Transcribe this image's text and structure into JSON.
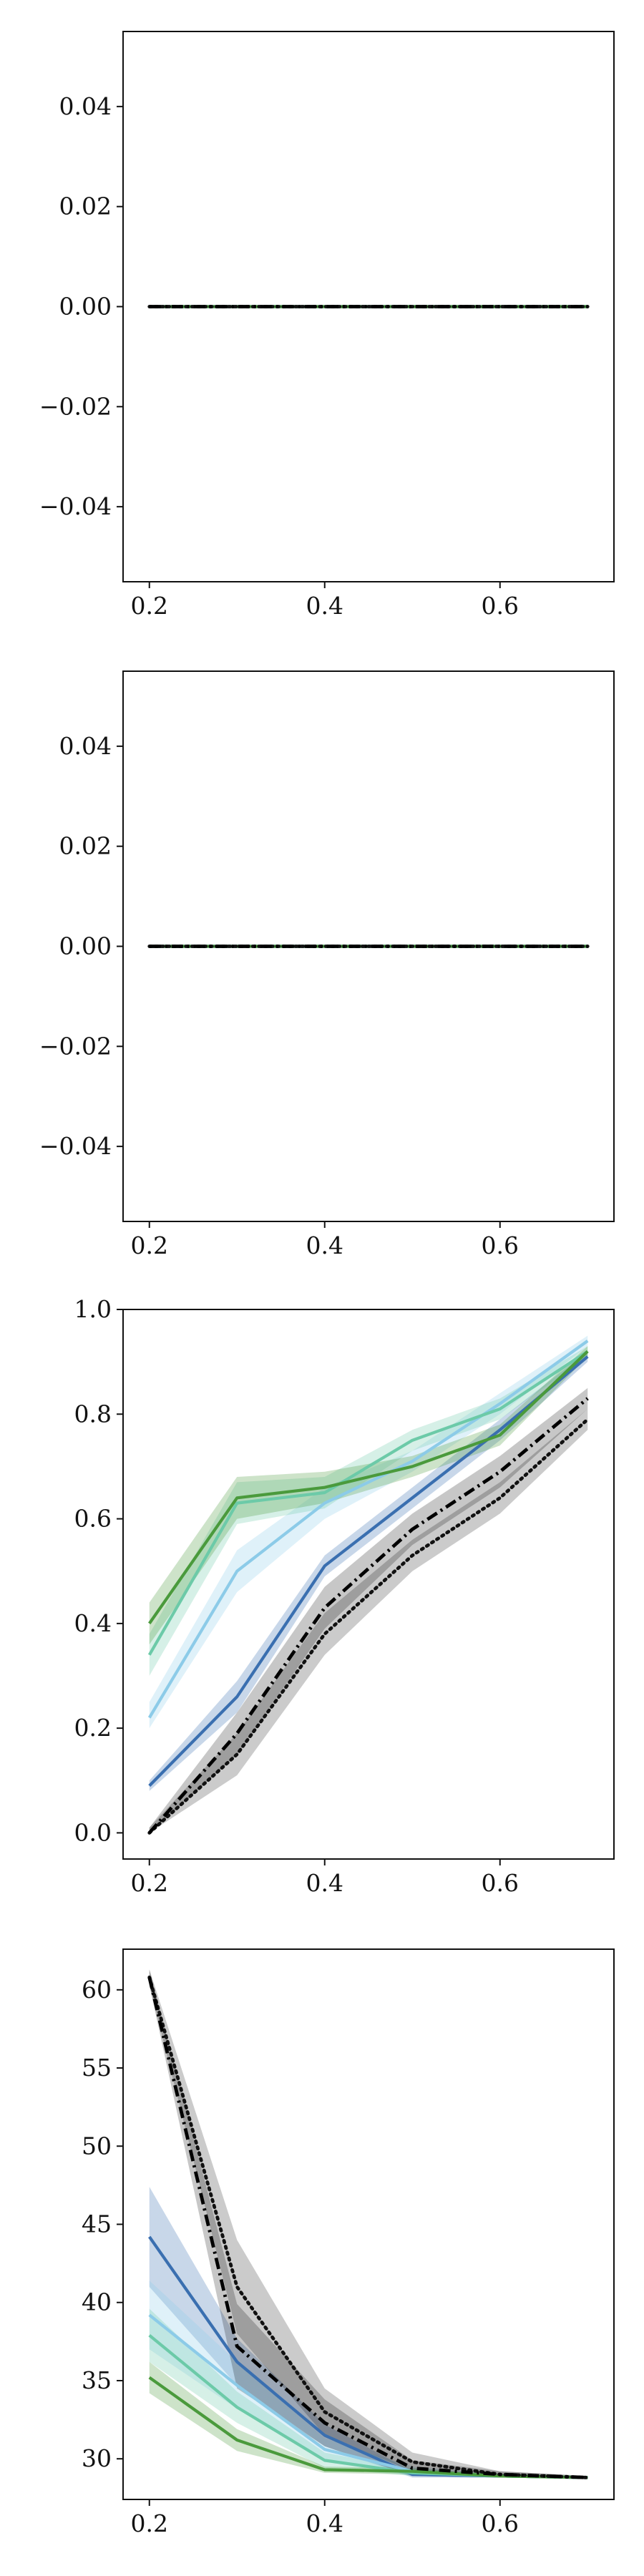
{
  "chart_data": [
    {
      "type": "line",
      "x": [
        0.2,
        0.3,
        0.4,
        0.5,
        0.6,
        0.7
      ],
      "xlim": [
        0.17,
        0.73
      ],
      "ylim": [
        -0.055,
        0.055
      ],
      "xticks": [
        0.2,
        0.4,
        0.6
      ],
      "xtick_labels": [
        "0.2",
        "0.4",
        "0.6"
      ],
      "yticks": [
        -0.04,
        -0.02,
        0.0,
        0.02,
        0.04
      ],
      "ytick_labels": [
        "−0.04",
        "−0.02",
        "0.00",
        "0.02",
        "0.04"
      ],
      "grid": false,
      "series": [
        {
          "color": "#3a6fb0",
          "dash": "solid",
          "values": [
            0,
            0,
            0,
            0,
            0,
            0
          ]
        },
        {
          "color": "#8ccbe8",
          "dash": "solid",
          "values": [
            0,
            0,
            0,
            0,
            0,
            0
          ]
        },
        {
          "color": "#6ccaa8",
          "dash": "solid",
          "values": [
            0,
            0,
            0,
            0,
            0,
            0
          ]
        },
        {
          "color": "#4a9a3c",
          "dash": "solid",
          "values": [
            0,
            0,
            0,
            0,
            0,
            0
          ]
        },
        {
          "color": "#111111",
          "dash": "dotted",
          "values": [
            0,
            0,
            0,
            0,
            0,
            0
          ]
        },
        {
          "color": "#000000",
          "dash": "dashdot",
          "values": [
            0,
            0,
            0,
            0,
            0,
            0
          ]
        }
      ]
    },
    {
      "type": "line",
      "x": [
        0.2,
        0.3,
        0.4,
        0.5,
        0.6,
        0.7
      ],
      "xlim": [
        0.17,
        0.73
      ],
      "ylim": [
        -0.055,
        0.055
      ],
      "xticks": [
        0.2,
        0.4,
        0.6
      ],
      "xtick_labels": [
        "0.2",
        "0.4",
        "0.6"
      ],
      "yticks": [
        -0.04,
        -0.02,
        0.0,
        0.02,
        0.04
      ],
      "ytick_labels": [
        "−0.04",
        "−0.02",
        "0.00",
        "0.02",
        "0.04"
      ],
      "grid": false,
      "series": [
        {
          "color": "#3a6fb0",
          "dash": "solid",
          "values": [
            0,
            0,
            0,
            0,
            0,
            0
          ]
        },
        {
          "color": "#8ccbe8",
          "dash": "solid",
          "values": [
            0,
            0,
            0,
            0,
            0,
            0
          ]
        },
        {
          "color": "#6ccaa8",
          "dash": "solid",
          "values": [
            0,
            0,
            0,
            0,
            0,
            0
          ]
        },
        {
          "color": "#4a9a3c",
          "dash": "solid",
          "values": [
            0,
            0,
            0,
            0,
            0,
            0
          ]
        },
        {
          "color": "#111111",
          "dash": "dotted",
          "values": [
            0,
            0,
            0,
            0,
            0,
            0
          ]
        },
        {
          "color": "#000000",
          "dash": "dashdot",
          "values": [
            0,
            0,
            0,
            0,
            0,
            0
          ]
        }
      ]
    },
    {
      "type": "line",
      "x": [
        0.2,
        0.3,
        0.4,
        0.5,
        0.6,
        0.7
      ],
      "xlim": [
        0.17,
        0.73
      ],
      "ylim": [
        -0.05,
        1.0
      ],
      "xticks": [
        0.2,
        0.4,
        0.6
      ],
      "xtick_labels": [
        "0.2",
        "0.4",
        "0.6"
      ],
      "yticks": [
        0.0,
        0.2,
        0.4,
        0.6,
        0.8,
        1.0
      ],
      "ytick_labels": [
        "0.0",
        "0.2",
        "0.4",
        "0.6",
        "0.8",
        "1.0"
      ],
      "grid": false,
      "series": [
        {
          "color": "#3a6fb0",
          "dash": "solid",
          "values": [
            0.09,
            0.26,
            0.51,
            0.64,
            0.77,
            0.91
          ],
          "band": [
            [
              0.08,
              0.1
            ],
            [
              0.23,
              0.29
            ],
            [
              0.49,
              0.53
            ],
            [
              0.62,
              0.66
            ],
            [
              0.75,
              0.79
            ],
            [
              0.9,
              0.92
            ]
          ]
        },
        {
          "color": "#8ccbe8",
          "dash": "solid",
          "values": [
            0.22,
            0.5,
            0.63,
            0.71,
            0.82,
            0.94
          ],
          "band": [
            [
              0.2,
              0.25
            ],
            [
              0.46,
              0.54
            ],
            [
              0.6,
              0.66
            ],
            [
              0.69,
              0.73
            ],
            [
              0.8,
              0.84
            ],
            [
              0.93,
              0.95
            ]
          ]
        },
        {
          "color": "#6ccaa8",
          "dash": "solid",
          "values": [
            0.34,
            0.63,
            0.65,
            0.75,
            0.81,
            0.92
          ],
          "band": [
            [
              0.3,
              0.38
            ],
            [
              0.59,
              0.67
            ],
            [
              0.62,
              0.68
            ],
            [
              0.73,
              0.77
            ],
            [
              0.79,
              0.83
            ],
            [
              0.91,
              0.93
            ]
          ]
        },
        {
          "color": "#4a9a3c",
          "dash": "solid",
          "values": [
            0.4,
            0.64,
            0.66,
            0.7,
            0.76,
            0.92
          ],
          "band": [
            [
              0.36,
              0.44
            ],
            [
              0.6,
              0.68
            ],
            [
              0.63,
              0.69
            ],
            [
              0.68,
              0.72
            ],
            [
              0.74,
              0.78
            ],
            [
              0.91,
              0.93
            ]
          ]
        },
        {
          "color": "#111111",
          "dash": "dotted",
          "values": [
            0.0,
            0.15,
            0.38,
            0.53,
            0.64,
            0.79
          ],
          "band": [
            [
              0.0,
              0.01
            ],
            [
              0.11,
              0.19
            ],
            [
              0.34,
              0.42
            ],
            [
              0.5,
              0.56
            ],
            [
              0.61,
              0.67
            ],
            [
              0.77,
              0.81
            ]
          ]
        },
        {
          "color": "#000000",
          "dash": "dashdot",
          "values": [
            0.0,
            0.19,
            0.43,
            0.58,
            0.69,
            0.83
          ],
          "band": [
            [
              0.0,
              0.01
            ],
            [
              0.15,
              0.23
            ],
            [
              0.39,
              0.47
            ],
            [
              0.55,
              0.61
            ],
            [
              0.66,
              0.72
            ],
            [
              0.81,
              0.85
            ]
          ]
        }
      ]
    },
    {
      "type": "line",
      "x": [
        0.2,
        0.3,
        0.4,
        0.5,
        0.6,
        0.7
      ],
      "xlim": [
        0.17,
        0.73
      ],
      "ylim": [
        27.4,
        62.6
      ],
      "xticks": [
        0.2,
        0.4,
        0.6
      ],
      "xtick_labels": [
        "0.2",
        "0.4",
        "0.6"
      ],
      "yticks": [
        30,
        35,
        40,
        45,
        50,
        55,
        60
      ],
      "ytick_labels": [
        "30",
        "35",
        "40",
        "45",
        "50",
        "55",
        "60"
      ],
      "grid": false,
      "series": [
        {
          "color": "#3a6fb0",
          "dash": "solid",
          "values": [
            44.2,
            36.2,
            31.5,
            29.0,
            28.9,
            28.8
          ],
          "band": [
            [
              41.0,
              47.4
            ],
            [
              34.7,
              37.7
            ],
            [
              30.8,
              32.2
            ],
            [
              28.8,
              29.2
            ],
            [
              28.8,
              29.0
            ],
            [
              28.7,
              28.9
            ]
          ]
        },
        {
          "color": "#8ccbe8",
          "dash": "solid",
          "values": [
            39.2,
            34.7,
            30.6,
            29.2,
            28.9,
            28.8
          ],
          "band": [
            [
              37.0,
              41.4
            ],
            [
              33.2,
              36.2
            ],
            [
              29.9,
              31.3
            ],
            [
              28.9,
              29.5
            ],
            [
              28.8,
              29.0
            ],
            [
              28.7,
              28.9
            ]
          ]
        },
        {
          "color": "#6ccaa8",
          "dash": "solid",
          "values": [
            37.9,
            33.3,
            29.9,
            29.1,
            28.9,
            28.8
          ],
          "band": [
            [
              36.2,
              39.6
            ],
            [
              32.3,
              34.3
            ],
            [
              29.4,
              30.4
            ],
            [
              28.9,
              29.3
            ],
            [
              28.8,
              29.0
            ],
            [
              28.7,
              28.9
            ]
          ]
        },
        {
          "color": "#4a9a3c",
          "dash": "solid",
          "values": [
            35.2,
            31.2,
            29.3,
            29.2,
            28.9,
            28.8
          ],
          "band": [
            [
              34.2,
              36.2
            ],
            [
              30.5,
              31.9
            ],
            [
              29.1,
              29.5
            ],
            [
              29.0,
              29.4
            ],
            [
              28.8,
              29.0
            ],
            [
              28.7,
              28.9
            ]
          ]
        },
        {
          "color": "#111111",
          "dash": "dotted",
          "values": [
            60.8,
            41.0,
            33.0,
            29.8,
            29.0,
            28.8
          ],
          "band": [
            [
              60.3,
              61.3
            ],
            [
              38.0,
              44.0
            ],
            [
              31.5,
              34.5
            ],
            [
              29.2,
              30.4
            ],
            [
              28.8,
              29.2
            ],
            [
              28.7,
              28.9
            ]
          ]
        },
        {
          "color": "#000000",
          "dash": "dashdot",
          "values": [
            60.8,
            37.2,
            32.3,
            29.4,
            29.0,
            28.8
          ],
          "band": [
            [
              60.3,
              61.3
            ],
            [
              34.5,
              39.9
            ],
            [
              30.8,
              33.8
            ],
            [
              28.9,
              29.9
            ],
            [
              28.8,
              29.2
            ],
            [
              28.7,
              28.9
            ]
          ]
        }
      ]
    }
  ]
}
